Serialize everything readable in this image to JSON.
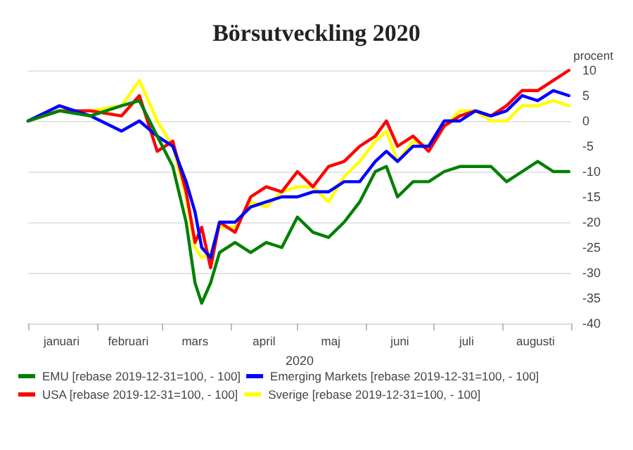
{
  "chart_data": {
    "type": "line",
    "title": "Börsutveckling 2020",
    "xlabel": "2020",
    "ylabel": "procent",
    "x": [
      "2020-01-01",
      "2020-01-15",
      "2020-01-29",
      "2020-02-12",
      "2020-02-20",
      "2020-02-28",
      "2020-03-06",
      "2020-03-12",
      "2020-03-16",
      "2020-03-19",
      "2020-03-23",
      "2020-03-27",
      "2020-04-03",
      "2020-04-10",
      "2020-04-17",
      "2020-04-24",
      "2020-05-01",
      "2020-05-08",
      "2020-05-15",
      "2020-05-22",
      "2020-05-29",
      "2020-06-05",
      "2020-06-10",
      "2020-06-15",
      "2020-06-22",
      "2020-06-29",
      "2020-07-06",
      "2020-07-13",
      "2020-07-20",
      "2020-07-27",
      "2020-08-03",
      "2020-08-10",
      "2020-08-17",
      "2020-08-24",
      "2020-08-31"
    ],
    "series": [
      {
        "name": "EMU [rebase 2019-12-31=100, - 100]",
        "color": "#008000",
        "values": [
          0,
          2,
          1,
          3,
          4,
          -3,
          -9,
          -20,
          -32,
          -36,
          -32,
          -26,
          -24,
          -26,
          -24,
          -25,
          -19,
          -22,
          -23,
          -20,
          -16,
          -10,
          -9,
          -15,
          -12,
          -12,
          -10,
          -9,
          -9,
          -9,
          -12,
          -10,
          -8,
          -10,
          -10
        ]
      },
      {
        "name": "Emerging Markets [rebase 2019-12-31=100, - 100]",
        "color": "#0000ff",
        "values": [
          0,
          3,
          1,
          -2,
          0,
          -3,
          -5,
          -12,
          -18,
          -25,
          -27,
          -20,
          -20,
          -17,
          -16,
          -15,
          -15,
          -14,
          -14,
          -12,
          -12,
          -8,
          -6,
          -8,
          -5,
          -5,
          0,
          0,
          2,
          1,
          2,
          5,
          4,
          6,
          5
        ]
      },
      {
        "name": "USA [rebase 2019-12-31=100, - 100]",
        "color": "#ff0000",
        "values": [
          0,
          2,
          2,
          1,
          5,
          -6,
          -4,
          -14,
          -24,
          -21,
          -29,
          -20,
          -22,
          -15,
          -13,
          -14,
          -10,
          -13,
          -9,
          -8,
          -5,
          -3,
          0,
          -5,
          -3,
          -6,
          -1,
          1,
          2,
          1,
          3,
          6,
          6,
          8,
          10
        ]
      },
      {
        "name": "Sverige [rebase 2019-12-31=100, - 100]",
        "color": "#ffff00",
        "values": [
          0,
          2,
          2,
          3,
          8,
          0,
          -5,
          -15,
          -25,
          -27,
          -26,
          -21,
          -21,
          -16,
          -17,
          -14,
          -13,
          -13,
          -16,
          -11,
          -8,
          -4,
          -2,
          -8,
          -4,
          -5,
          -1,
          2,
          2,
          0,
          0,
          3,
          3,
          4,
          3
        ]
      }
    ],
    "xlim": [
      "2020-01-01",
      "2020-09-01"
    ],
    "xticks": [
      {
        "value": "2020-01-01",
        "label": null
      },
      {
        "value": "2020-01-16",
        "label": "januari"
      },
      {
        "value": "2020-02-01",
        "label": null
      },
      {
        "value": "2020-02-15",
        "label": "februari"
      },
      {
        "value": "2020-03-01",
        "label": null
      },
      {
        "value": "2020-03-16",
        "label": "mars"
      },
      {
        "value": "2020-04-01",
        "label": null
      },
      {
        "value": "2020-04-16",
        "label": "april"
      },
      {
        "value": "2020-05-01",
        "label": null
      },
      {
        "value": "2020-05-16",
        "label": "maj"
      },
      {
        "value": "2020-06-01",
        "label": null
      },
      {
        "value": "2020-06-16",
        "label": "juni"
      },
      {
        "value": "2020-07-01",
        "label": null
      },
      {
        "value": "2020-07-16",
        "label": "juli"
      },
      {
        "value": "2020-08-01",
        "label": null
      },
      {
        "value": "2020-08-16",
        "label": "augusti"
      },
      {
        "value": "2020-09-01",
        "label": null
      }
    ],
    "ylim": [
      -40,
      10
    ],
    "yticks": [
      -40,
      -35,
      -30,
      -25,
      -20,
      -15,
      -10,
      -5,
      0,
      5,
      10
    ],
    "grid": "y",
    "legend": "bottom",
    "marker": "none",
    "line_style": "solid"
  }
}
